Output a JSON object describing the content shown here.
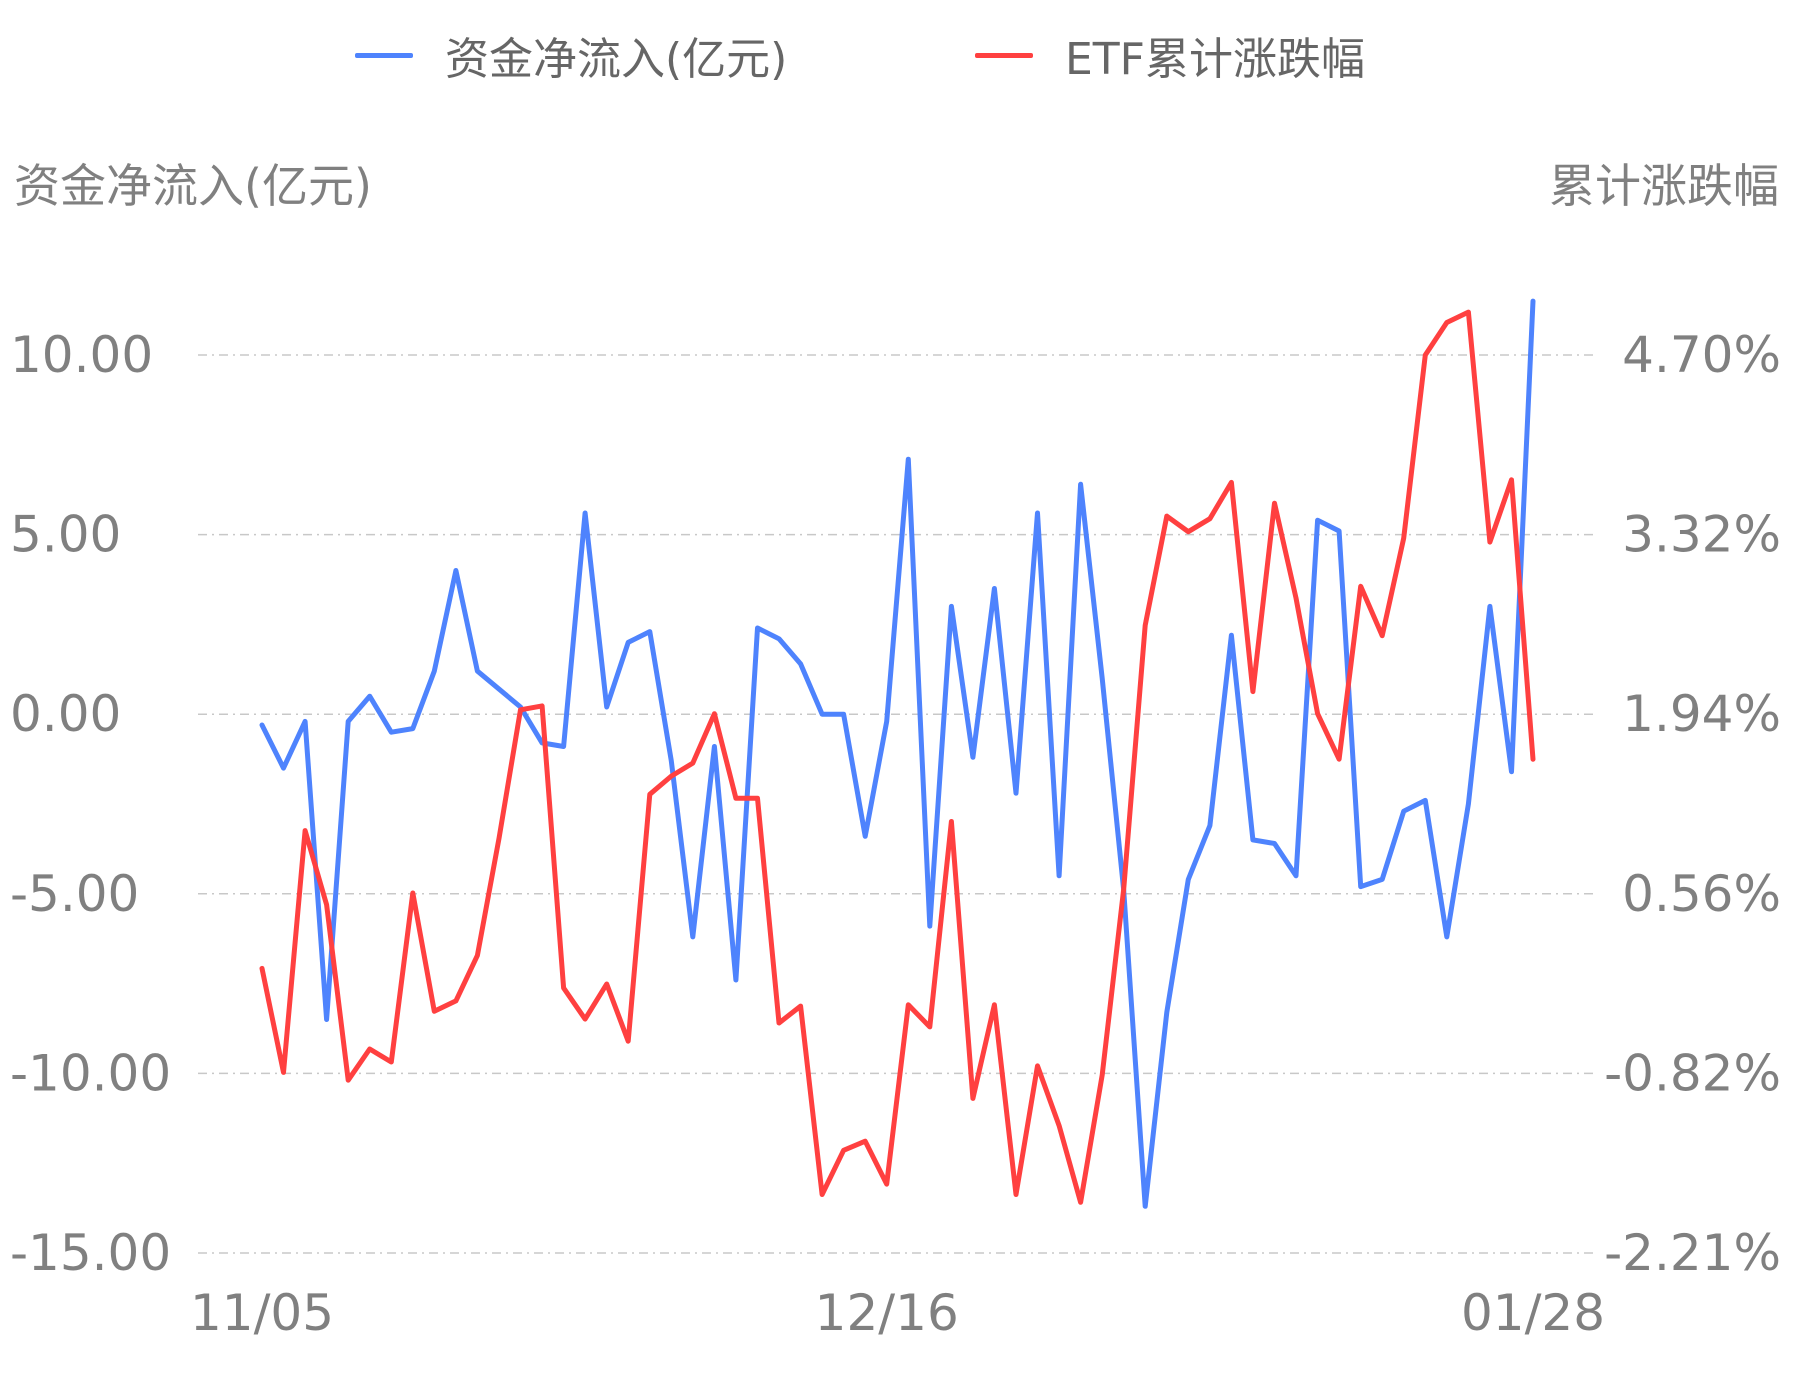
{
  "chart_data": {
    "type": "line",
    "legend_position": "top-center",
    "grid": true,
    "y_left_label": "资金净流入(亿元)",
    "y_right_label": "累计涨跌幅",
    "y_left_ticks": [
      "10.00",
      "5.00",
      "0.00",
      "-5.00",
      "-10.00",
      "-15.00"
    ],
    "y_right_ticks": [
      "4.70%",
      "3.32%",
      "1.94%",
      "0.56%",
      "-0.82%",
      "-2.21%"
    ],
    "y_left_range": [
      -15,
      10
    ],
    "y_right_range": [
      -2.21,
      4.7
    ],
    "x_tick_labels": [
      "11/05",
      "12/16",
      "01/28"
    ],
    "x_tick_index": [
      0,
      29,
      59
    ],
    "series": [
      {
        "name": "资金净流入(亿元)",
        "axis": "left",
        "color": "#4e83fd",
        "values": [
          -0.3,
          -1.5,
          -0.2,
          -8.5,
          -0.2,
          0.5,
          -0.5,
          -0.4,
          1.2,
          4.0,
          1.2,
          0.7,
          0.2,
          -0.8,
          -0.9,
          5.6,
          0.2,
          2.0,
          2.3,
          -1.3,
          -6.2,
          -0.9,
          -7.4,
          2.4,
          2.1,
          1.4,
          0.0,
          0.0,
          -3.4,
          -0.2,
          7.1,
          -5.9,
          3.0,
          -1.2,
          3.5,
          -2.2,
          5.6,
          -4.5,
          6.4,
          1.0,
          -4.9,
          -13.7,
          -8.3,
          -4.6,
          -3.1,
          2.2,
          -3.5,
          -3.6,
          -4.5,
          5.4,
          5.1,
          -4.8,
          -4.6,
          -2.7,
          -2.4,
          -6.2,
          -2.5,
          3.0,
          -1.6,
          11.5
        ]
      },
      {
        "name": "ETF累计涨跌幅",
        "axis": "right",
        "color": "#ff4040",
        "values": [
          -0.02,
          -0.82,
          1.04,
          0.47,
          -0.88,
          -0.64,
          -0.74,
          0.56,
          -0.35,
          -0.27,
          0.08,
          0.98,
          1.97,
          2.0,
          -0.17,
          -0.41,
          -0.14,
          -0.58,
          1.32,
          1.46,
          1.56,
          1.94,
          1.29,
          1.29,
          -0.44,
          -0.31,
          -1.76,
          -1.42,
          -1.35,
          -1.68,
          -0.3,
          -0.47,
          1.11,
          -1.02,
          -0.3,
          -1.76,
          -0.77,
          -1.23,
          -1.82,
          -0.84,
          0.59,
          2.62,
          3.46,
          3.34,
          3.44,
          3.72,
          2.11,
          3.56,
          2.83,
          1.94,
          1.59,
          2.92,
          2.54,
          3.29,
          4.7,
          4.95,
          5.03,
          3.26,
          3.74,
          1.59
        ]
      }
    ]
  }
}
